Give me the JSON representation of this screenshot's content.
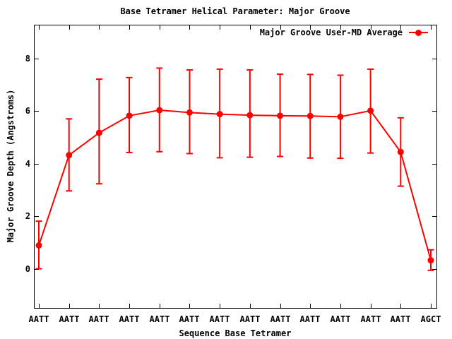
{
  "window": {
    "background": "#ffffff"
  },
  "chart_data": {
    "type": "line",
    "title": "Base Tetramer Helical Parameter: Major Groove",
    "xlabel": "Sequence Base Tetramer",
    "ylabel": "Major Groove Depth (Angstroms)",
    "legend": {
      "label": "Major Groove User-MD Average",
      "position": "top-right-inside"
    },
    "colors": {
      "series": "#ff0000",
      "axis": "#000000",
      "background": "#ffffff"
    },
    "grid": false,
    "ylim": [
      -1.48,
      9.29
    ],
    "yticks": [
      0,
      2,
      4,
      6,
      8
    ],
    "categories": [
      "AATT",
      "AATT",
      "AATT",
      "AATT",
      "AATT",
      "AATT",
      "AATT",
      "AATT",
      "AATT",
      "AATT",
      "AATT",
      "AATT",
      "AATT",
      "AGCT"
    ],
    "series": [
      {
        "name": "Major Groove User-MD Average",
        "marker": "filled-circle",
        "error_bars": true,
        "values": [
          0.9,
          4.33,
          5.18,
          5.83,
          6.04,
          5.95,
          5.89,
          5.85,
          5.83,
          5.82,
          5.79,
          6.02,
          4.45,
          0.33
        ],
        "error_low": [
          0.01,
          2.97,
          3.24,
          4.43,
          4.46,
          4.39,
          4.23,
          4.25,
          4.28,
          4.22,
          4.21,
          4.41,
          3.15,
          -0.05
        ],
        "error_high": [
          1.82,
          5.71,
          7.22,
          7.28,
          7.64,
          7.57,
          7.6,
          7.57,
          7.41,
          7.4,
          7.37,
          7.6,
          5.75,
          0.73
        ]
      }
    ]
  }
}
